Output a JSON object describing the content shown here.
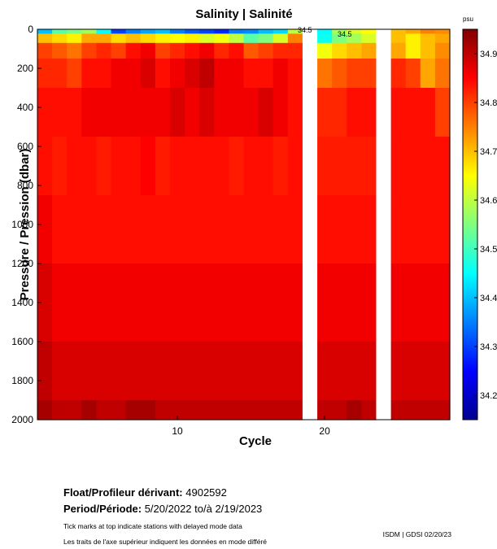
{
  "chart_data": {
    "type": "heatmap",
    "title": "Salinity | Salinité",
    "xlabel": "Cycle",
    "ylabel": "Pressure / Pression (dbar)",
    "x_ticks": [
      10,
      20
    ],
    "y_ticks": [
      0,
      200,
      400,
      600,
      800,
      1000,
      1200,
      1400,
      1600,
      1800,
      2000
    ],
    "ylim": [
      0,
      2000
    ],
    "xlim": [
      0.5,
      28.5
    ],
    "colorbar": {
      "unit": "psu",
      "ticks": [
        "34.9",
        "34.8",
        "34.7",
        "34.6",
        "34.5",
        "34.4",
        "34.3",
        "34.2"
      ],
      "range": [
        34.15,
        34.95
      ]
    },
    "contour_labels": [
      "34.5",
      "34.5",
      "34.5"
    ],
    "missing_cycles": [
      19,
      24
    ],
    "cycles": [
      1,
      2,
      3,
      4,
      5,
      6,
      7,
      8,
      9,
      10,
      11,
      12,
      13,
      14,
      15,
      16,
      17,
      18,
      20,
      21,
      22,
      23,
      25,
      26,
      27,
      28
    ],
    "levels": [
      {
        "p": 5,
        "v": [
          34.4,
          34.52,
          34.55,
          34.58,
          34.45,
          34.3,
          34.35,
          34.38,
          34.4,
          34.35,
          34.32,
          34.3,
          34.28,
          34.35,
          34.36,
          34.4,
          34.42,
          34.6,
          34.45,
          34.58,
          34.62,
          34.65,
          34.7,
          34.72,
          34.75,
          34.74
        ]
      },
      {
        "p": 40,
        "v": [
          34.7,
          34.68,
          34.66,
          34.72,
          34.72,
          34.68,
          34.7,
          34.68,
          34.66,
          34.65,
          34.66,
          34.62,
          34.64,
          34.6,
          34.52,
          34.55,
          34.62,
          34.75,
          34.46,
          34.55,
          34.58,
          34.62,
          34.7,
          34.66,
          34.7,
          34.72
        ]
      },
      {
        "p": 100,
        "v": [
          34.8,
          34.78,
          34.76,
          34.8,
          34.82,
          34.8,
          34.84,
          34.86,
          34.8,
          34.82,
          34.84,
          34.86,
          34.82,
          34.84,
          34.78,
          34.8,
          34.82,
          34.82,
          34.64,
          34.68,
          34.7,
          34.72,
          34.72,
          34.66,
          34.7,
          34.74
        ]
      },
      {
        "p": 200,
        "v": [
          34.82,
          34.82,
          34.8,
          34.84,
          34.84,
          34.86,
          34.86,
          34.88,
          34.84,
          34.86,
          34.88,
          34.9,
          34.86,
          34.86,
          34.84,
          34.84,
          34.86,
          34.84,
          34.76,
          34.78,
          34.8,
          34.8,
          34.82,
          34.8,
          34.72,
          34.76
        ]
      },
      {
        "p": 400,
        "v": [
          34.84,
          34.84,
          34.84,
          34.86,
          34.86,
          34.86,
          34.86,
          34.86,
          34.86,
          34.88,
          34.86,
          34.88,
          34.86,
          34.86,
          34.86,
          34.88,
          34.86,
          34.84,
          34.82,
          34.82,
          34.84,
          34.84,
          34.84,
          34.84,
          34.84,
          34.8
        ]
      },
      {
        "p": 700,
        "v": [
          34.84,
          34.83,
          34.84,
          34.84,
          34.83,
          34.84,
          34.84,
          34.85,
          34.83,
          34.84,
          34.84,
          34.84,
          34.84,
          34.83,
          34.84,
          34.84,
          34.83,
          34.84,
          34.83,
          34.83,
          34.83,
          34.83,
          34.84,
          34.84,
          34.84,
          34.84
        ]
      },
      {
        "p": 1000,
        "v": [
          34.86,
          34.84,
          34.84,
          34.84,
          34.84,
          34.84,
          34.84,
          34.84,
          34.84,
          34.84,
          34.84,
          34.84,
          34.84,
          34.84,
          34.84,
          34.84,
          34.84,
          34.84,
          34.84,
          34.84,
          34.84,
          34.84,
          34.84,
          34.84,
          34.84,
          34.84
        ]
      },
      {
        "p": 1400,
        "v": [
          34.88,
          34.86,
          34.86,
          34.86,
          34.86,
          34.86,
          34.86,
          34.86,
          34.86,
          34.86,
          34.86,
          34.86,
          34.86,
          34.86,
          34.86,
          34.86,
          34.86,
          34.86,
          34.86,
          34.86,
          34.86,
          34.86,
          34.86,
          34.86,
          34.86,
          34.86
        ]
      },
      {
        "p": 1800,
        "v": [
          34.9,
          34.88,
          34.88,
          34.88,
          34.88,
          34.88,
          34.88,
          34.88,
          34.88,
          34.88,
          34.88,
          34.88,
          34.88,
          34.88,
          34.88,
          34.88,
          34.88,
          34.88,
          34.88,
          34.88,
          34.88,
          34.88,
          34.88,
          34.88,
          34.88,
          34.88
        ]
      },
      {
        "p": 2000,
        "v": [
          34.92,
          34.9,
          34.9,
          34.92,
          34.9,
          34.9,
          34.92,
          34.92,
          34.9,
          34.9,
          34.9,
          34.9,
          34.9,
          34.9,
          34.9,
          34.9,
          34.9,
          34.9,
          34.9,
          34.9,
          34.92,
          34.9,
          34.9,
          34.9,
          34.9,
          34.9
        ]
      }
    ]
  },
  "footer": {
    "float_label": "Float/Profileur dérivant:",
    "float_value": "4902592",
    "period_label": "Period/Période:",
    "period_value": "5/20/2022  to/à  2/19/2023",
    "note_en": "Tick marks at top indicate stations with delayed mode data",
    "note_fr": "Les traits de l'axe supérieur indiquent les données en mode différé",
    "credit": "ISDM | GDSI  02/20/23"
  }
}
